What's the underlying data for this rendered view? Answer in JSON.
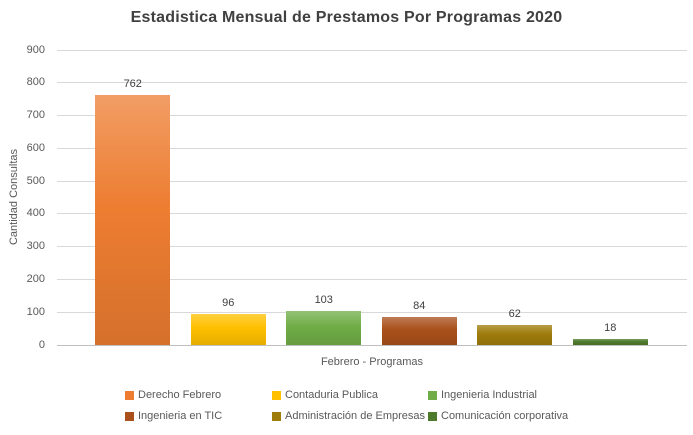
{
  "chart_data": {
    "type": "bar",
    "title": "Estadistica Mensual de Prestamos Por Programas 2020",
    "xlabel": "Febrero - Programas",
    "ylabel": "Cantidad Consultas",
    "ylim": [
      0,
      900
    ],
    "ytick_interval": 100,
    "yticks": [
      0,
      100,
      200,
      300,
      400,
      500,
      600,
      700,
      800,
      900
    ],
    "grid": true,
    "legend_position": "bottom",
    "data_labels": true,
    "categories": [
      "Derecho Febrero",
      "Contaduria Publica",
      "Ingenieria Industrial",
      "Ingenieria en TIC",
      "Administración de Empresas",
      "Comunicación corporativa"
    ],
    "values": [
      762,
      96,
      103,
      84,
      62,
      18
    ],
    "colors": [
      "#ED7D31",
      "#FFC000",
      "#70AD47",
      "#A9501B",
      "#9E7C0C",
      "#4E7A2B"
    ],
    "grid_color": "#D9D9D9",
    "axis_color": "#C0C0C0",
    "tick_text_color": "#595959",
    "title_color": "#404040"
  }
}
